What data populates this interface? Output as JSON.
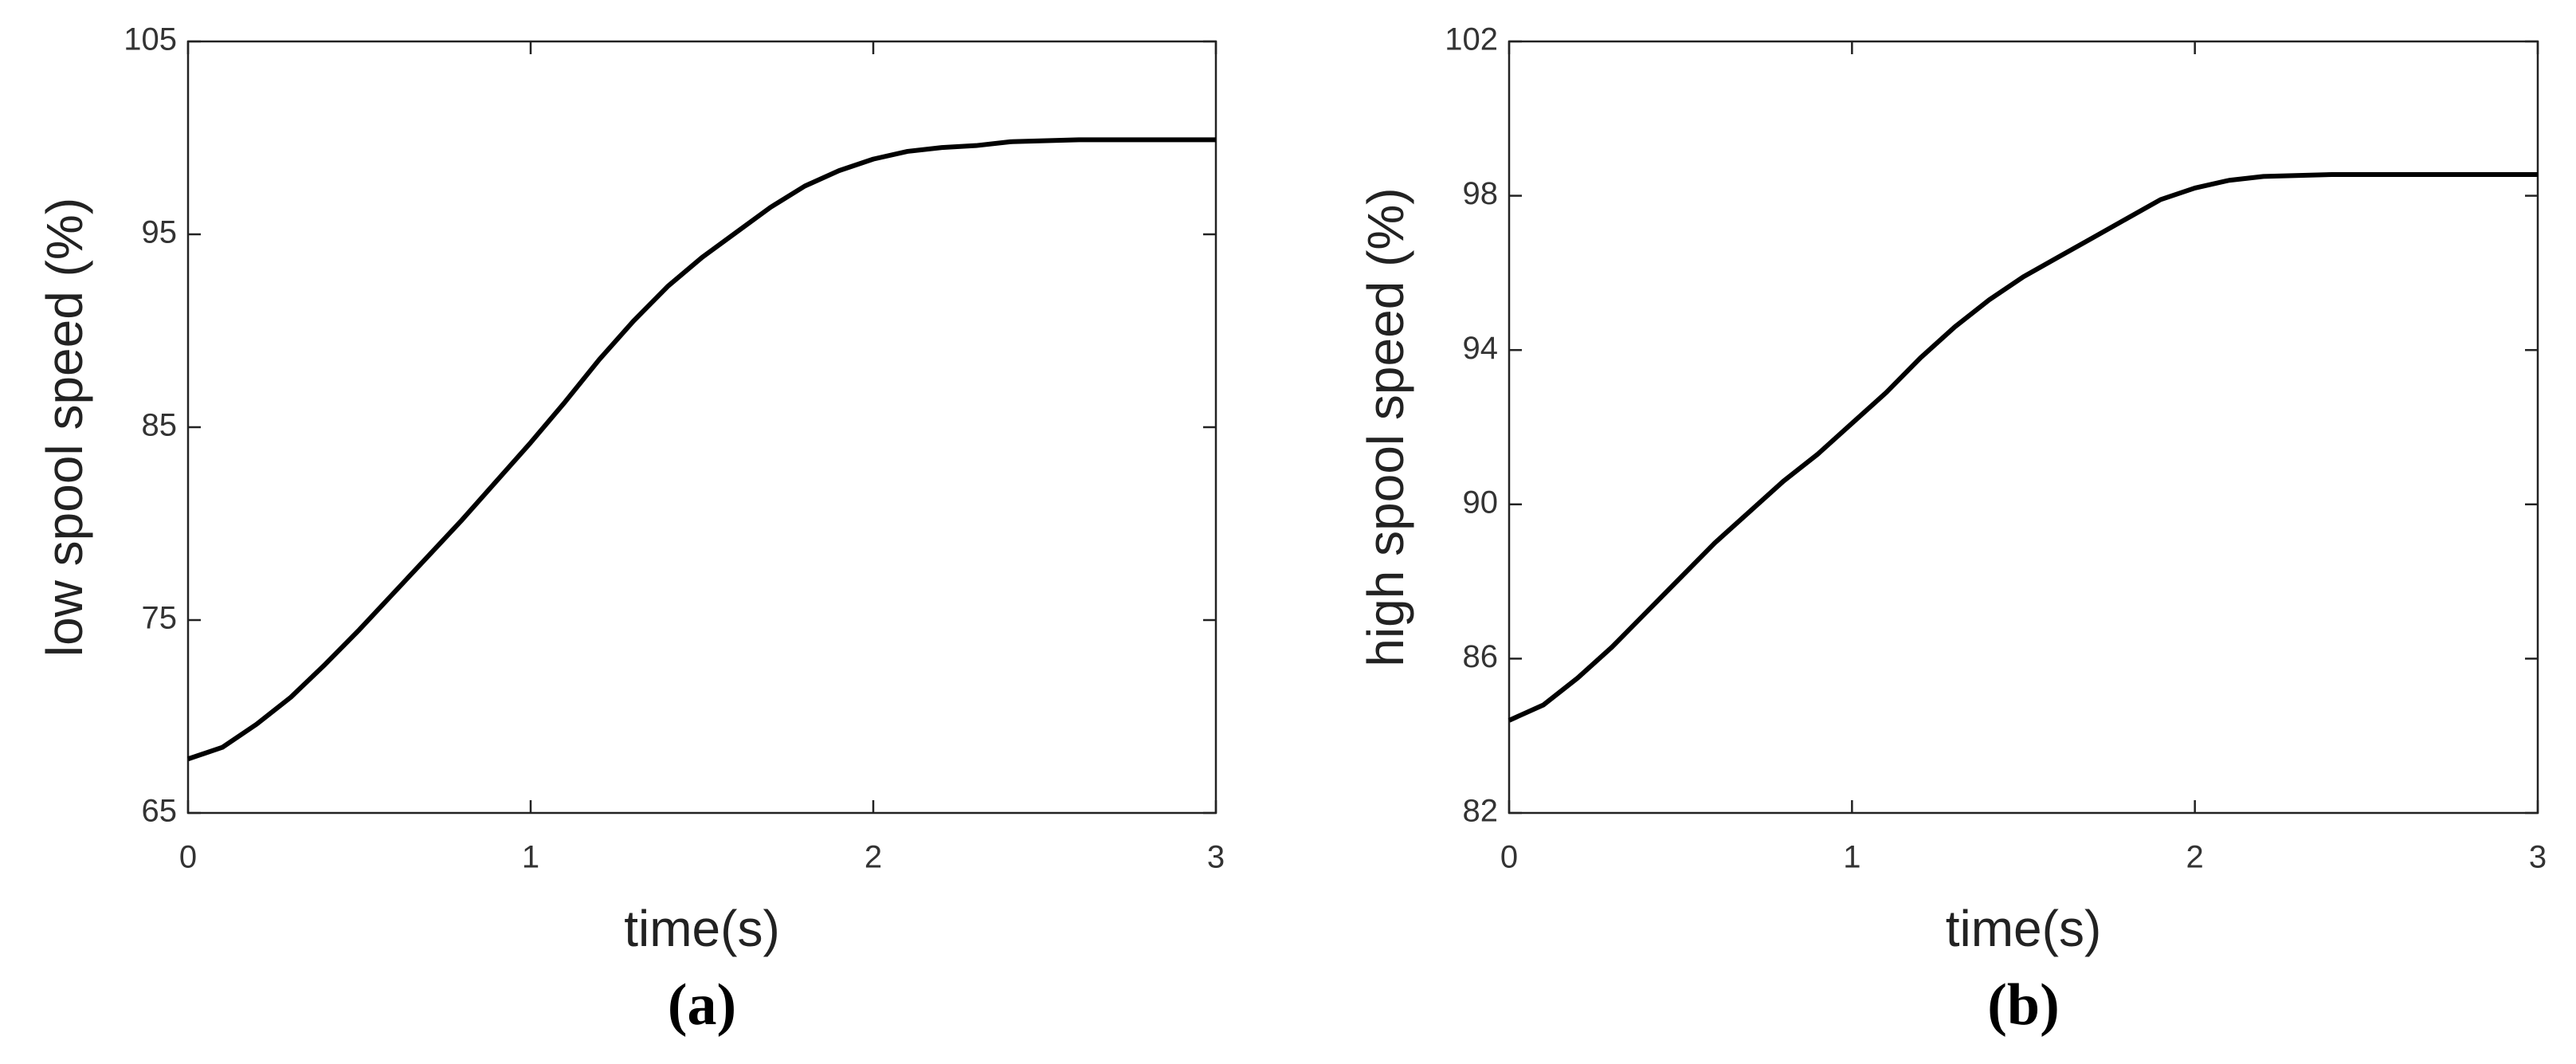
{
  "chart_data": [
    {
      "type": "line",
      "caption": "(a)",
      "xlabel": "time(s)",
      "ylabel": "low spool speed (%)",
      "x": [
        0,
        0.1,
        0.2,
        0.3,
        0.4,
        0.5,
        0.6,
        0.7,
        0.8,
        0.9,
        1.0,
        1.1,
        1.2,
        1.3,
        1.4,
        1.5,
        1.6,
        1.7,
        1.8,
        1.9,
        2.0,
        2.1,
        2.2,
        2.3,
        2.4,
        2.6,
        2.8,
        3.0
      ],
      "values": [
        67.8,
        68.4,
        69.6,
        71.0,
        72.7,
        74.5,
        76.4,
        78.3,
        80.2,
        82.2,
        84.2,
        86.3,
        88.5,
        90.5,
        92.3,
        93.8,
        95.1,
        96.4,
        97.5,
        98.3,
        98.9,
        99.3,
        99.5,
        99.6,
        99.8,
        99.9,
        99.9,
        99.9
      ],
      "color": "#000000",
      "xlim": [
        0,
        3
      ],
      "ylim": [
        65,
        105
      ],
      "xticks": [
        0,
        1,
        2,
        3
      ],
      "yticks": [
        65,
        75,
        85,
        95,
        105
      ]
    },
    {
      "type": "line",
      "caption": "(b)",
      "xlabel": "time(s)",
      "ylabel": "high spool speed (%)",
      "x": [
        0,
        0.1,
        0.2,
        0.3,
        0.4,
        0.5,
        0.6,
        0.7,
        0.8,
        0.9,
        1.0,
        1.1,
        1.2,
        1.3,
        1.4,
        1.5,
        1.6,
        1.7,
        1.8,
        1.9,
        2.0,
        2.1,
        2.2,
        2.4,
        2.6,
        2.8,
        3.0
      ],
      "values": [
        84.4,
        84.8,
        85.5,
        86.3,
        87.2,
        88.1,
        89.0,
        89.8,
        90.6,
        91.3,
        92.1,
        92.9,
        93.8,
        94.6,
        95.3,
        95.9,
        96.4,
        96.9,
        97.4,
        97.9,
        98.2,
        98.4,
        98.5,
        98.55,
        98.55,
        98.55,
        98.55
      ],
      "color": "#000000",
      "xlim": [
        0,
        3
      ],
      "ylim": [
        82,
        102
      ],
      "xticks": [
        0,
        1,
        2,
        3
      ],
      "yticks": [
        82,
        86,
        90,
        94,
        98,
        102
      ]
    }
  ]
}
